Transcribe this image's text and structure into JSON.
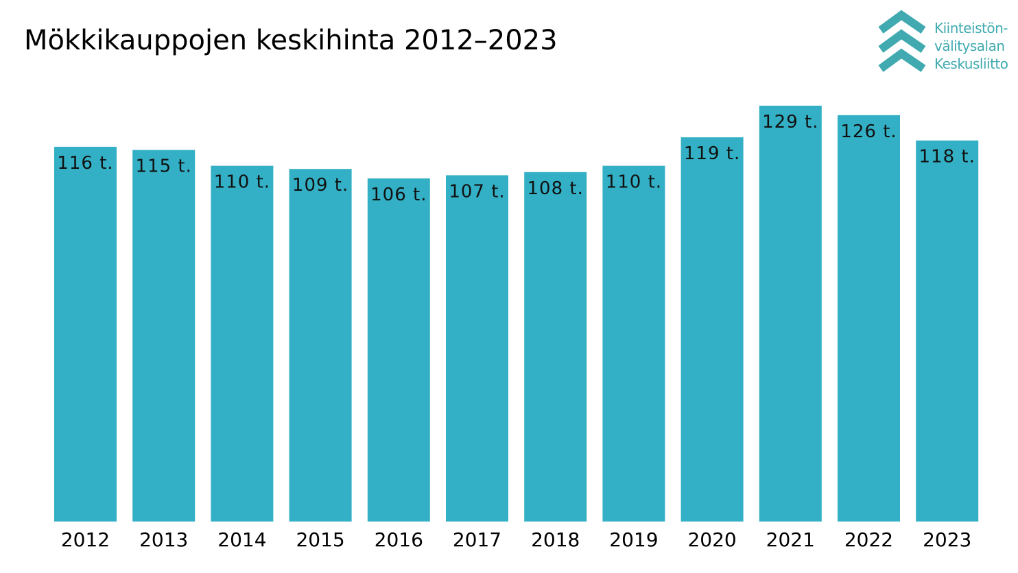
{
  "title": "Mökkikauppojen keskihinta 2012–2023",
  "logo": {
    "icon": "chevron-stack-logo",
    "line1": "Kiinteistön-",
    "line2": "välitysalan",
    "line3": "Keskusliitto",
    "color": "#40aab0"
  },
  "chart_data": {
    "type": "bar",
    "title": "Mökkikauppojen keskihinta 2012–2023",
    "categories": [
      "2012",
      "2013",
      "2014",
      "2015",
      "2016",
      "2017",
      "2018",
      "2019",
      "2020",
      "2021",
      "2022",
      "2023"
    ],
    "values": [
      116,
      115,
      110,
      109,
      106,
      107,
      108,
      110,
      119,
      129,
      126,
      118
    ],
    "data_labels": [
      "116 t.",
      "115 t.",
      "110 t.",
      "109 t.",
      "106 t.",
      "107 t.",
      "108 t.",
      "110 t.",
      "119 t.",
      "129 t.",
      "126 t.",
      "118 t."
    ],
    "xlabel": "",
    "ylabel": "",
    "grid": false,
    "legend": "none",
    "bar_color": "#33b0c5"
  }
}
